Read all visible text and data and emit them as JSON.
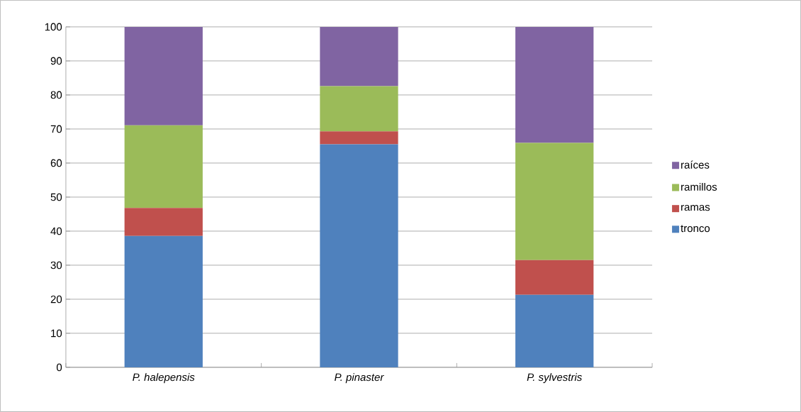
{
  "chart_data": {
    "type": "bar",
    "stacked": true,
    "categories": [
      "P. halepensis",
      "P. pinaster",
      "P. sylvestris"
    ],
    "series": [
      {
        "name": "tronco",
        "color": "#4f81bd",
        "values": [
          38.6,
          65.5,
          21.3
        ]
      },
      {
        "name": "ramas",
        "color": "#c0504d",
        "values": [
          8.2,
          3.8,
          10.2
        ]
      },
      {
        "name": "ramillos",
        "color": "#9bbb59",
        "values": [
          24.3,
          13.3,
          34.4
        ]
      },
      {
        "name": "raíces",
        "color": "#8064a2",
        "values": [
          28.9,
          17.4,
          34.1
        ]
      }
    ],
    "ylim": [
      0,
      100
    ],
    "yticks": [
      0,
      10,
      20,
      30,
      40,
      50,
      60,
      70,
      80,
      90,
      100
    ],
    "grid": "y",
    "legend": "right"
  }
}
